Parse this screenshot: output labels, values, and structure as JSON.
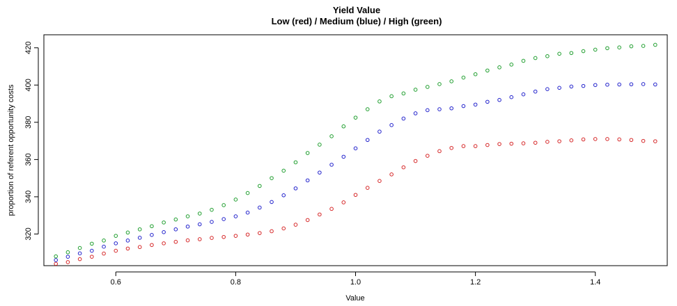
{
  "chart_data": {
    "type": "scatter",
    "title": "Yield Value",
    "subtitle": "Low (red) / Medium (blue) / High (green)",
    "xlabel": "Value",
    "ylabel": "proportion of referent opportunity costs",
    "xlim": [
      0.48,
      1.52
    ],
    "ylim": [
      303,
      427
    ],
    "x_ticks": [
      0.6,
      0.8,
      1.0,
      1.2,
      1.4
    ],
    "x_tick_labels": [
      "0.6",
      "0.8",
      "1.0",
      "1.2",
      "1.4"
    ],
    "y_ticks": [
      320,
      340,
      360,
      380,
      400,
      420
    ],
    "y_tick_labels": [
      "320",
      "340",
      "360",
      "380",
      "400",
      "420"
    ],
    "grid": false,
    "marker": "open-circle",
    "x": [
      0.5,
      0.52,
      0.54,
      0.56,
      0.58,
      0.6,
      0.62,
      0.64,
      0.66,
      0.68,
      0.7,
      0.72,
      0.74,
      0.76,
      0.78,
      0.8,
      0.82,
      0.84,
      0.86,
      0.88,
      0.9,
      0.92,
      0.94,
      0.96,
      0.98,
      1.0,
      1.02,
      1.04,
      1.06,
      1.08,
      1.1,
      1.12,
      1.14,
      1.16,
      1.18,
      1.2,
      1.22,
      1.24,
      1.26,
      1.28,
      1.3,
      1.32,
      1.34,
      1.36,
      1.38,
      1.4,
      1.42,
      1.44,
      1.46,
      1.48,
      1.5
    ],
    "series": [
      {
        "color": "#d62728",
        "values": [
          304.0,
          304.9,
          306.5,
          307.8,
          309.5,
          311.0,
          312.2,
          313.0,
          314.1,
          315.0,
          315.8,
          316.6,
          317.2,
          317.9,
          318.4,
          319.0,
          319.7,
          320.5,
          321.5,
          323.0,
          325.0,
          327.5,
          330.5,
          333.5,
          337.0,
          341.0,
          344.8,
          348.5,
          352.0,
          355.8,
          359.2,
          362.0,
          364.5,
          366.2,
          367.2,
          367.2,
          367.8,
          368.3,
          368.5,
          368.7,
          369.0,
          369.5,
          369.8,
          370.3,
          370.8,
          371.0,
          371.0,
          370.8,
          370.5,
          370.0,
          369.8
        ]
      },
      {
        "color": "#2222cc",
        "values": [
          306.0,
          307.8,
          309.6,
          311.0,
          313.2,
          315.0,
          316.5,
          318.0,
          319.5,
          321.0,
          322.5,
          324.0,
          325.2,
          326.5,
          328.0,
          329.5,
          331.5,
          334.2,
          337.2,
          340.8,
          344.5,
          348.8,
          353.0,
          357.2,
          361.5,
          366.0,
          370.5,
          375.0,
          378.5,
          382.0,
          384.8,
          386.5,
          387.0,
          387.5,
          388.7,
          389.5,
          391.0,
          392.0,
          393.5,
          395.0,
          396.5,
          397.8,
          398.5,
          399.2,
          399.5,
          400.0,
          400.2,
          400.3,
          400.4,
          400.5,
          400.3
        ]
      },
      {
        "color": "#1f9e2e",
        "values": [
          308.0,
          310.2,
          312.5,
          314.8,
          316.5,
          319.0,
          320.8,
          322.5,
          324.2,
          326.2,
          327.8,
          329.5,
          331.0,
          333.0,
          335.5,
          338.5,
          342.0,
          345.8,
          350.0,
          354.0,
          358.5,
          363.5,
          368.0,
          372.5,
          377.8,
          382.5,
          387.0,
          391.2,
          394.0,
          395.5,
          397.5,
          399.0,
          400.5,
          402.0,
          404.0,
          405.8,
          407.8,
          409.5,
          411.0,
          413.0,
          414.5,
          415.5,
          416.8,
          417.2,
          418.2,
          419.0,
          419.8,
          420.2,
          420.8,
          421.0,
          421.6
        ]
      }
    ]
  }
}
